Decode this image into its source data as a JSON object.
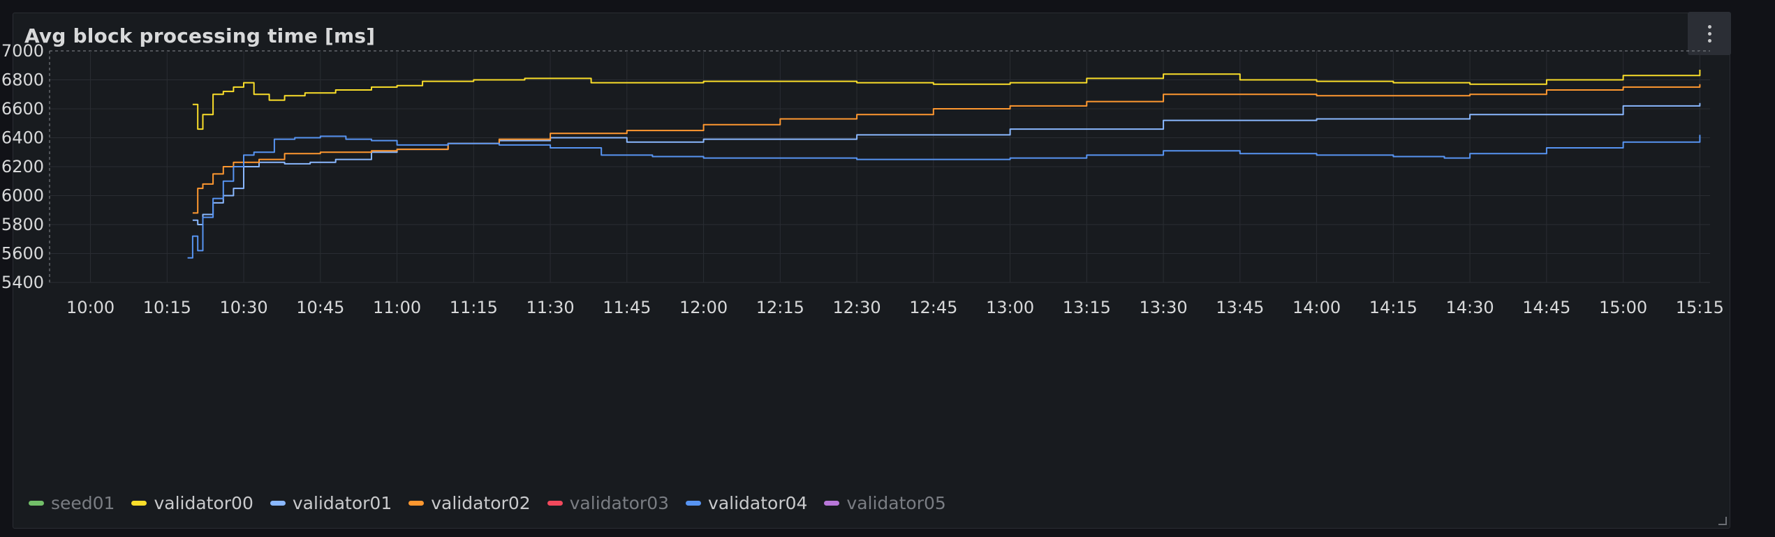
{
  "panel": {
    "title": "Avg block processing time [ms]"
  },
  "colors": {
    "background": "#181b1f",
    "grid": "#2a2d33",
    "tick_text": "#d8d9da"
  },
  "chart_data": {
    "type": "line",
    "title": "Avg block processing time [ms]",
    "xlabel": "",
    "ylabel": "",
    "x_tick_labels": [
      "10:00",
      "10:15",
      "10:30",
      "10:45",
      "11:00",
      "11:15",
      "11:30",
      "11:45",
      "12:00",
      "12:15",
      "12:30",
      "12:45",
      "13:00",
      "13:15",
      "13:30",
      "13:45",
      "14:00",
      "14:15",
      "14:30",
      "14:45",
      "15:00",
      "15:15"
    ],
    "y_ticks": [
      5400,
      5600,
      5800,
      6000,
      6200,
      6400,
      6600,
      6800,
      7000
    ],
    "ylim": [
      5400,
      7000
    ],
    "xlim": [
      "09:52",
      "15:17"
    ],
    "grid": true,
    "legend_position": "bottom-left",
    "series": [
      {
        "name": "seed01",
        "color": "#73bf69",
        "visible": false,
        "x": [],
        "y": []
      },
      {
        "name": "validator00",
        "color": "#fade2a",
        "visible": true,
        "x": [
          "10:20",
          "10:21",
          "10:22",
          "10:24",
          "10:26",
          "10:28",
          "10:30",
          "10:32",
          "10:35",
          "10:38",
          "10:42",
          "10:48",
          "10:55",
          "11:00",
          "11:05",
          "11:15",
          "11:25",
          "11:30",
          "11:38",
          "11:45",
          "12:00",
          "12:30",
          "12:45",
          "13:00",
          "13:15",
          "13:30",
          "13:45",
          "14:00",
          "14:15",
          "14:30",
          "14:45",
          "15:00",
          "15:15"
        ],
        "y": [
          6630,
          6460,
          6560,
          6700,
          6720,
          6750,
          6780,
          6700,
          6660,
          6690,
          6710,
          6730,
          6750,
          6760,
          6790,
          6800,
          6810,
          6810,
          6780,
          6780,
          6790,
          6780,
          6770,
          6780,
          6810,
          6840,
          6800,
          6790,
          6780,
          6770,
          6800,
          6830,
          6870
        ]
      },
      {
        "name": "validator01",
        "color": "#8ab8ff",
        "visible": true,
        "x": [
          "10:20",
          "10:21",
          "10:22",
          "10:24",
          "10:26",
          "10:28",
          "10:30",
          "10:33",
          "10:38",
          "10:43",
          "10:48",
          "10:55",
          "11:00",
          "11:10",
          "11:20",
          "11:30",
          "11:45",
          "12:00",
          "12:30",
          "13:00",
          "13:30",
          "14:00",
          "14:30",
          "15:00",
          "15:15"
        ],
        "y": [
          5830,
          5800,
          5870,
          5950,
          6000,
          6050,
          6200,
          6230,
          6220,
          6230,
          6250,
          6300,
          6320,
          6360,
          6380,
          6400,
          6370,
          6390,
          6420,
          6460,
          6520,
          6530,
          6560,
          6620,
          6640
        ]
      },
      {
        "name": "validator02",
        "color": "#ff9830",
        "visible": true,
        "x": [
          "10:20",
          "10:21",
          "10:22",
          "10:24",
          "10:26",
          "10:28",
          "10:30",
          "10:33",
          "10:38",
          "10:45",
          "10:55",
          "11:00",
          "11:10",
          "11:20",
          "11:30",
          "11:45",
          "12:00",
          "12:15",
          "12:30",
          "12:45",
          "13:00",
          "13:15",
          "13:30",
          "13:45",
          "14:00",
          "14:30",
          "14:45",
          "15:00",
          "15:15"
        ],
        "y": [
          5880,
          6050,
          6080,
          6150,
          6200,
          6230,
          6230,
          6250,
          6290,
          6300,
          6310,
          6320,
          6360,
          6390,
          6430,
          6450,
          6490,
          6530,
          6560,
          6600,
          6620,
          6650,
          6700,
          6700,
          6690,
          6700,
          6730,
          6750,
          6770
        ]
      },
      {
        "name": "validator03",
        "color": "#f2495c",
        "visible": false,
        "x": [],
        "y": []
      },
      {
        "name": "validator04",
        "color": "#5794f2",
        "visible": true,
        "x": [
          "10:19",
          "10:20",
          "10:21",
          "10:22",
          "10:24",
          "10:26",
          "10:28",
          "10:30",
          "10:32",
          "10:36",
          "10:40",
          "10:45",
          "10:50",
          "10:55",
          "11:00",
          "11:10",
          "11:20",
          "11:30",
          "11:40",
          "11:50",
          "12:00",
          "12:15",
          "12:30",
          "13:00",
          "13:15",
          "13:30",
          "13:45",
          "14:00",
          "14:15",
          "14:25",
          "14:30",
          "14:45",
          "15:00",
          "15:15"
        ],
        "y": [
          5570,
          5720,
          5620,
          5850,
          5980,
          6100,
          6200,
          6280,
          6300,
          6390,
          6400,
          6410,
          6390,
          6380,
          6350,
          6360,
          6350,
          6330,
          6280,
          6270,
          6260,
          6260,
          6250,
          6260,
          6280,
          6310,
          6290,
          6280,
          6270,
          6260,
          6290,
          6330,
          6370,
          6420
        ]
      },
      {
        "name": "validator05",
        "color": "#b877d9",
        "visible": false,
        "x": [],
        "y": []
      }
    ]
  }
}
